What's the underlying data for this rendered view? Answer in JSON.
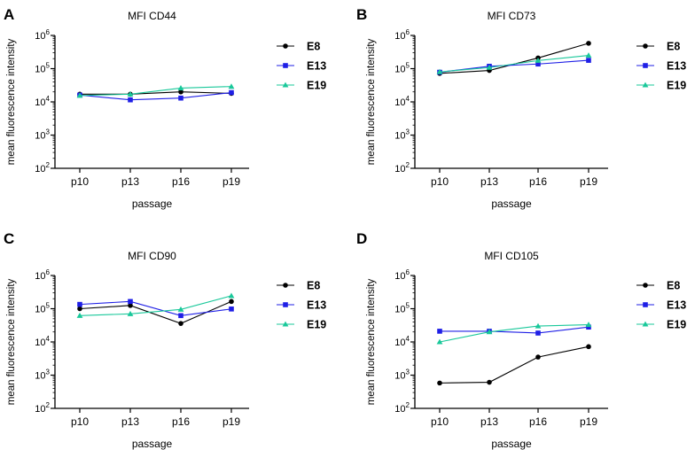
{
  "figure": {
    "colors": {
      "E8": "#000000",
      "E13": "#1f1fe6",
      "E19": "#19c89a",
      "axis": "#000000"
    }
  },
  "chart_data": [
    {
      "panel": "A",
      "type": "line",
      "title": "MFI CD44",
      "xlabel": "passage",
      "ylabel": "mean fluorescence intensity",
      "yscale": "log10",
      "ylim": [
        100,
        1000000
      ],
      "ytick_bases": [
        "10",
        "10",
        "10",
        "10",
        "10"
      ],
      "ytick_exponents": [
        "2",
        "3",
        "4",
        "5",
        "6"
      ],
      "categories": [
        "p10",
        "p13",
        "p16",
        "p19"
      ],
      "series": [
        {
          "name": "E8",
          "marker": "circle",
          "values": [
            17000,
            17000,
            20000,
            18000
          ]
        },
        {
          "name": "E13",
          "marker": "square",
          "values": [
            16000,
            11500,
            13000,
            19000
          ]
        },
        {
          "name": "E19",
          "marker": "triangle",
          "values": [
            15500,
            17000,
            26000,
            29000
          ]
        }
      ]
    },
    {
      "panel": "B",
      "type": "line",
      "title": "MFI CD73",
      "xlabel": "passage",
      "ylabel": "mean fluorescence intensity",
      "yscale": "log10",
      "ylim": [
        100,
        1000000
      ],
      "ytick_bases": [
        "10",
        "10",
        "10",
        "10",
        "10"
      ],
      "ytick_exponents": [
        "2",
        "3",
        "4",
        "5",
        "6"
      ],
      "categories": [
        "p10",
        "p13",
        "p16",
        "p19"
      ],
      "series": [
        {
          "name": "E8",
          "marker": "circle",
          "values": [
            72000,
            88000,
            210000,
            580000
          ]
        },
        {
          "name": "E13",
          "marker": "square",
          "values": [
            78000,
            118000,
            138000,
            178000
          ]
        },
        {
          "name": "E19",
          "marker": "triangle",
          "values": [
            80000,
            108000,
            175000,
            250000
          ]
        }
      ]
    },
    {
      "panel": "C",
      "type": "line",
      "title": "MFI CD90",
      "xlabel": "passage",
      "ylabel": "mean fluorescence intensity",
      "yscale": "log10",
      "ylim": [
        100,
        1000000
      ],
      "ytick_bases": [
        "10",
        "10",
        "10",
        "10",
        "10"
      ],
      "ytick_exponents": [
        "2",
        "3",
        "4",
        "5",
        "6"
      ],
      "categories": [
        "p10",
        "p13",
        "p16",
        "p19"
      ],
      "series": [
        {
          "name": "E8",
          "marker": "circle",
          "values": [
            100000,
            125000,
            36000,
            165000
          ]
        },
        {
          "name": "E13",
          "marker": "square",
          "values": [
            135000,
            165000,
            62000,
            98000
          ]
        },
        {
          "name": "E19",
          "marker": "triangle",
          "values": [
            62000,
            70000,
            95000,
            245000
          ]
        }
      ]
    },
    {
      "panel": "D",
      "type": "line",
      "title": "MFI CD105",
      "xlabel": "passage",
      "ylabel": "mean fluorescence intensity",
      "yscale": "log10",
      "ylim": [
        100,
        1000000
      ],
      "ytick_bases": [
        "10",
        "10",
        "10",
        "10",
        "10"
      ],
      "ytick_exponents": [
        "2",
        "3",
        "4",
        "5",
        "6"
      ],
      "categories": [
        "p10",
        "p13",
        "p16",
        "p19"
      ],
      "series": [
        {
          "name": "E8",
          "marker": "circle",
          "values": [
            580,
            610,
            3500,
            7200
          ]
        },
        {
          "name": "E13",
          "marker": "square",
          "values": [
            21000,
            21000,
            18500,
            28000
          ]
        },
        {
          "name": "E19",
          "marker": "triangle",
          "values": [
            10000,
            20000,
            30000,
            33000
          ]
        }
      ]
    }
  ]
}
